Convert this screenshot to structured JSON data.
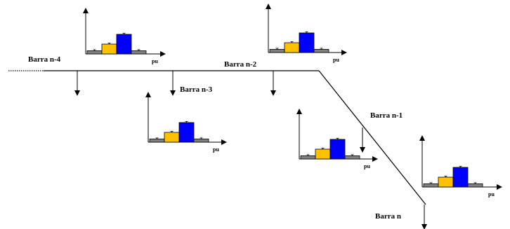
{
  "colors": {
    "line": "#000000",
    "bar_gray": "#808080",
    "bar_yellow": "#FFC000",
    "bar_blue": "#0000FF"
  },
  "bus_labels": {
    "n4": "Barra n-4",
    "n3": "Barra n-3",
    "n2": "Barra n-2",
    "n1": "Barra n-1",
    "n": "Barra n"
  },
  "axis_unit": "pu",
  "chart_data": [
    {
      "type": "bar",
      "series": [
        {
          "values": [
            0.14,
            0.43,
            0.86,
            0.14
          ]
        }
      ],
      "xlabel": "pu"
    },
    {
      "type": "bar",
      "series": [
        {
          "values": [
            0.14,
            0.43,
            0.86,
            0.14
          ]
        }
      ],
      "xlabel": "pu"
    },
    {
      "type": "bar",
      "series": [
        {
          "values": [
            0.14,
            0.43,
            0.86,
            0.14
          ]
        }
      ],
      "xlabel": "pu"
    },
    {
      "type": "bar",
      "series": [
        {
          "values": [
            0.14,
            0.43,
            0.86,
            0.14
          ]
        }
      ],
      "xlabel": "pu"
    },
    {
      "type": "bar",
      "series": [
        {
          "values": [
            0.14,
            0.43,
            0.86,
            0.14
          ]
        }
      ],
      "xlabel": "pu"
    }
  ]
}
